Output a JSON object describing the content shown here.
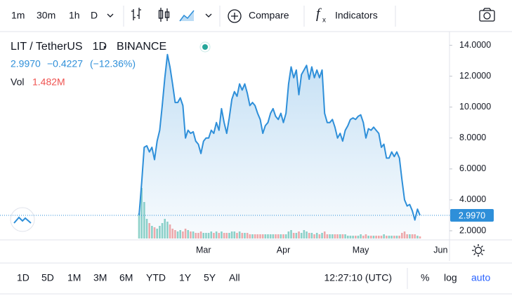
{
  "toolbar": {
    "intervals": [
      "1m",
      "30m",
      "1h",
      "D"
    ],
    "compare": "Compare",
    "indicators": "Indicators"
  },
  "chart_data": {
    "type": "line",
    "legend": {
      "symbol": "LIT / TetherUS",
      "interval": "1D",
      "exchange": "BINANCE",
      "close": "2.9970",
      "change": "−0.4227",
      "change_pct": "(−12.36%)"
    },
    "color": "#2e8fd9",
    "categories": [
      null,
      null,
      null,
      null,
      null,
      null,
      null,
      null,
      null,
      null,
      null,
      null,
      null,
      null,
      null,
      null,
      null,
      null,
      null,
      null,
      null,
      null,
      null,
      null,
      null,
      "Mar",
      null,
      null,
      null,
      null,
      null,
      null,
      null,
      null,
      null,
      null,
      null,
      null,
      null,
      null,
      null,
      null,
      null,
      null,
      null,
      null,
      null,
      null,
      null,
      null,
      null,
      null,
      null,
      null,
      null,
      null,
      "Apr",
      null,
      null,
      null,
      null,
      null,
      null,
      null,
      null,
      null,
      null,
      null,
      null,
      null,
      null,
      null,
      null,
      null,
      null,
      null,
      null,
      null,
      null,
      null,
      null,
      null,
      null,
      null,
      null,
      null,
      "May",
      null,
      null,
      null,
      null,
      null,
      null,
      null,
      null,
      null,
      null,
      null,
      null,
      null,
      null,
      null,
      null,
      null,
      null,
      null,
      null,
      null,
      null,
      null,
      null,
      null,
      null,
      null,
      null,
      null,
      null,
      "Jun"
    ],
    "values": [
      3.0,
      5.1,
      7.4,
      7.5,
      7.1,
      7.4,
      6.6,
      7.8,
      8.5,
      10.1,
      11.9,
      13.4,
      12.6,
      11.5,
      10.3,
      10.3,
      10.6,
      10.1,
      8.0,
      8.5,
      8.3,
      8.4,
      7.8,
      7.6,
      7.0,
      7.8,
      8.0,
      8.0,
      8.5,
      8.3,
      9.0,
      8.5,
      9.9,
      9.0,
      8.3,
      9.3,
      10.5,
      11.0,
      10.7,
      11.5,
      11.1,
      11.5,
      10.9,
      10.1,
      10.3,
      10.1,
      9.6,
      9.2,
      8.3,
      8.8,
      9.0,
      9.6,
      9.9,
      9.4,
      9.2,
      9.6,
      9.0,
      9.6,
      11.5,
      12.6,
      11.9,
      12.4,
      10.8,
      12.1,
      12.4,
      12.7,
      11.8,
      12.6,
      11.9,
      12.4,
      11.9,
      12.4,
      9.6,
      9.0,
      9.0,
      9.2,
      8.7,
      8.0,
      8.3,
      7.8,
      8.5,
      8.8,
      9.2,
      9.3,
      9.2,
      9.4,
      9.5,
      9.0,
      8.0,
      8.6,
      8.5,
      8.7,
      8.5,
      8.3,
      7.4,
      7.6,
      6.7,
      6.7,
      7.1,
      6.8,
      7.1,
      6.7,
      5.3,
      4.0,
      3.6,
      3.7,
      3.3,
      2.7,
      3.4,
      2.997,
      null,
      null,
      null,
      null,
      null,
      null,
      null,
      null
    ],
    "volume": {
      "name": "Vol",
      "label": "1.482M",
      "up_color": "#8fd3c8",
      "down_color": "#f4a9a9",
      "values": [
        18,
        36,
        26,
        14,
        11,
        9,
        8,
        7,
        9,
        11,
        14,
        12,
        10,
        7,
        6,
        5,
        6,
        5,
        7,
        6,
        5,
        5,
        4,
        4,
        5,
        4,
        4,
        4,
        5,
        4,
        5,
        4,
        5,
        4,
        4,
        4,
        5,
        5,
        4,
        5,
        4,
        4,
        4,
        3,
        3,
        3,
        3,
        3,
        3,
        3,
        3,
        3,
        3,
        3,
        3,
        3,
        3,
        3,
        5,
        6,
        4,
        4,
        5,
        4,
        6,
        5,
        4,
        4,
        3,
        4,
        3,
        4,
        5,
        3,
        3,
        3,
        3,
        3,
        3,
        3,
        3,
        2,
        2,
        2,
        2,
        2,
        3,
        2,
        3,
        2,
        2,
        2,
        2,
        2,
        2,
        3,
        2,
        2,
        2,
        2,
        2,
        2,
        4,
        5,
        3,
        3,
        3,
        3,
        2,
        1.482,
        null,
        null,
        null,
        null,
        null,
        null,
        null,
        null
      ]
    },
    "ylim": [
      1.5,
      14.75
    ],
    "yticks": [
      {
        "value": 2,
        "label": "2.0000"
      },
      {
        "value": 4,
        "label": "4.0000"
      },
      {
        "value": 6,
        "label": "6.0000"
      },
      {
        "value": 8,
        "label": "8.0000"
      },
      {
        "value": 10,
        "label": "10.0000"
      },
      {
        "value": 12,
        "label": "12.0000"
      },
      {
        "value": 14,
        "label": "14.0000"
      }
    ],
    "grid": false
  },
  "bottom_bar": {
    "ranges": [
      "1D",
      "5D",
      "1M",
      "3M",
      "6M",
      "YTD",
      "1Y",
      "5Y",
      "All"
    ],
    "clock": "12:27:10 (UTC)",
    "percent": "%",
    "log": "log",
    "auto": "auto"
  }
}
